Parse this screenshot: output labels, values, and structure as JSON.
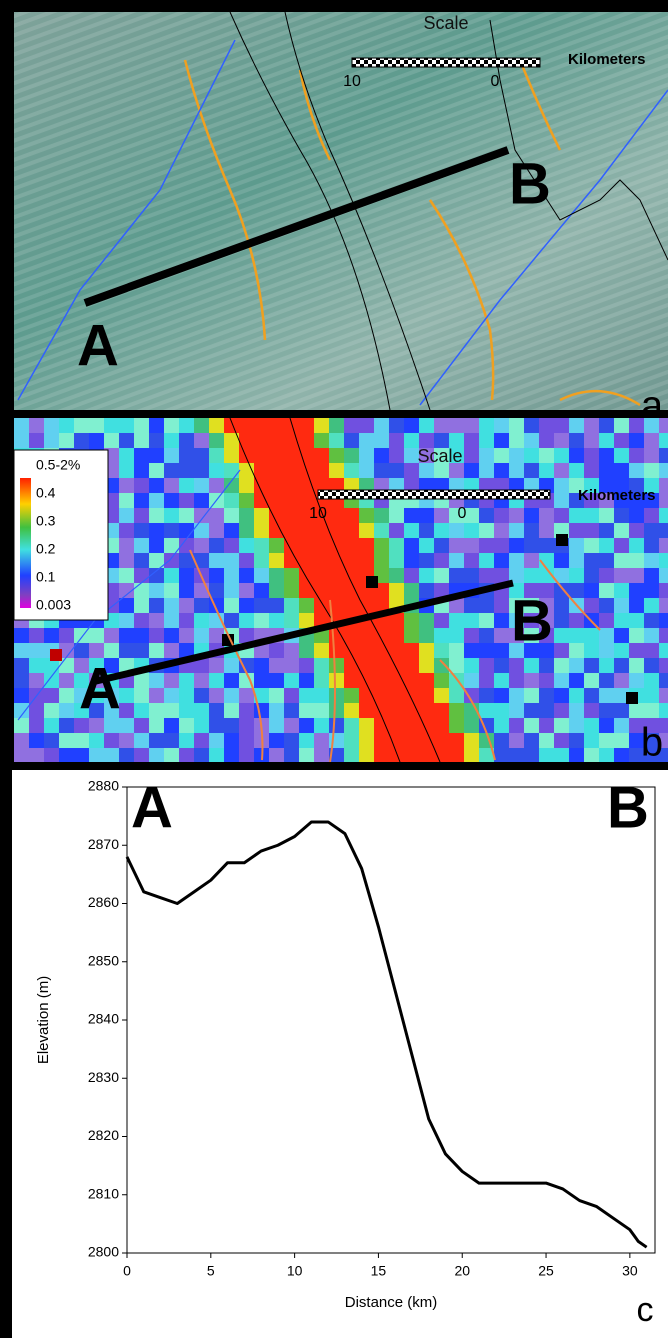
{
  "panel_a": {
    "scale_title": "Scale",
    "scale_left": "10",
    "scale_right": "0",
    "scale_unit": "Kilometers",
    "point_a": "A",
    "point_b": "B",
    "panel_label": "a"
  },
  "panel_b": {
    "scale_title": "Scale",
    "scale_left": "10",
    "scale_right": "0",
    "scale_unit": "Kilometers",
    "point_a": "A",
    "point_b": "B",
    "panel_label": "b",
    "legend": [
      "0.5-2%",
      "0.4",
      "0.3",
      "0.2",
      "0.1",
      "0.003"
    ]
  },
  "chart_data": {
    "type": "line",
    "x_label": "Distance (km)",
    "y_label": "Elevation (m)",
    "annotations": [
      "A",
      "B",
      "c"
    ],
    "x": [
      0,
      0.5,
      1,
      2,
      3,
      4,
      5,
      6,
      7,
      8,
      9,
      10,
      11,
      12,
      13,
      14,
      15,
      16,
      17,
      18,
      19,
      20,
      21,
      22,
      23,
      24,
      25,
      26,
      27,
      28,
      29,
      30,
      30.5,
      31
    ],
    "values": [
      2868,
      2865,
      2862,
      2861,
      2860,
      2862,
      2864,
      2867,
      2867,
      2869,
      2870,
      2871.5,
      2874,
      2874,
      2872,
      2866,
      2856,
      2845,
      2834,
      2823,
      2817,
      2814,
      2812,
      2812,
      2812,
      2812,
      2812,
      2811,
      2809,
      2808,
      2806,
      2804,
      2802,
      2801
    ],
    "color": "#000000",
    "xlim": [
      0,
      31.5
    ],
    "xticks": [
      0,
      5,
      10,
      15,
      20,
      25,
      30
    ],
    "ylim": [
      2800,
      2880
    ],
    "yticks": [
      2800,
      2810,
      2820,
      2830,
      2840,
      2850,
      2860,
      2870,
      2880
    ]
  }
}
